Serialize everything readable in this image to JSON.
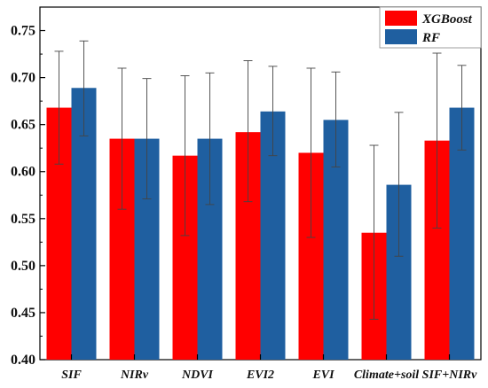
{
  "chart_data": {
    "type": "bar",
    "categories": [
      "SIF",
      "NIRv",
      "NDVI",
      "EVI2",
      "EVI",
      "Climate+soil",
      "SIF+NIRv"
    ],
    "series": [
      {
        "name": "XGBoost",
        "color": "#ff0000",
        "values": [
          0.668,
          0.635,
          0.617,
          0.642,
          0.62,
          0.535,
          0.633
        ],
        "error_low": [
          0.608,
          0.56,
          0.532,
          0.568,
          0.53,
          0.443,
          0.54
        ],
        "error_high": [
          0.728,
          0.71,
          0.702,
          0.718,
          0.71,
          0.628,
          0.726
        ]
      },
      {
        "name": "RF",
        "color": "#1f5fa0",
        "values": [
          0.689,
          0.635,
          0.635,
          0.664,
          0.655,
          0.586,
          0.668
        ],
        "error_low": [
          0.638,
          0.571,
          0.565,
          0.617,
          0.605,
          0.51,
          0.623
        ],
        "error_high": [
          0.739,
          0.699,
          0.705,
          0.712,
          0.706,
          0.663,
          0.713
        ]
      }
    ],
    "ylim": [
      0.4,
      0.775
    ],
    "yticks": [
      "0.40",
      "0.45",
      "0.50",
      "0.55",
      "0.60",
      "0.65",
      "0.70",
      "0.75"
    ],
    "legend_position": "top-right",
    "error_bars": true,
    "grid": false
  }
}
